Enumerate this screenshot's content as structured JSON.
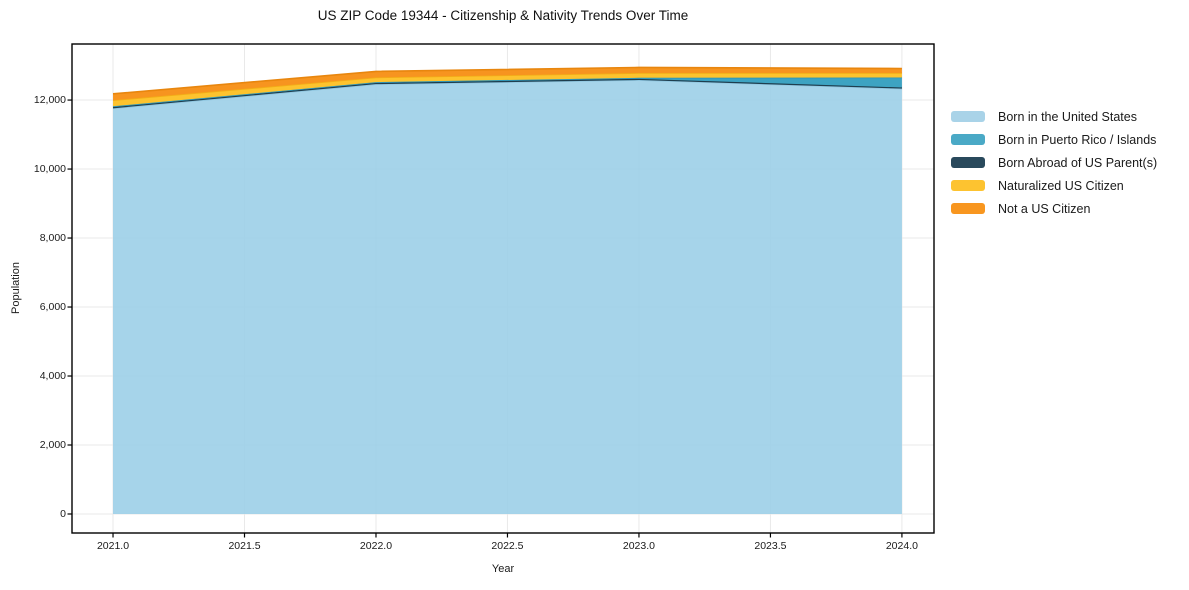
{
  "chart": {
    "title": "US ZIP Code 19344 - Citizenship & Nativity Trends Over Time",
    "xlabel": "Year",
    "ylabel": "Population"
  },
  "chart_data": {
    "type": "area",
    "stacked": true,
    "title": "US ZIP Code 19344 - Citizenship & Nativity Trends Over Time",
    "xlabel": "Year",
    "ylabel": "Population",
    "x": [
      2021,
      2022,
      2023,
      2024
    ],
    "series": [
      {
        "name": "Born in the United States",
        "color": "#a9d3e8",
        "fill": "#9ccfe8",
        "line": "#8ec6e0",
        "fill_opacity": 0.9,
        "values": [
          11760,
          12460,
          12580,
          12330
        ]
      },
      {
        "name": "Born in Puerto Rico / Islands",
        "color": "#4aa9c6",
        "fill": "#3da3c2",
        "line": "#2e94b5",
        "fill_opacity": 1,
        "values": [
          25,
          25,
          30,
          290
        ]
      },
      {
        "name": "Born Abroad of US Parent(s)",
        "color": "#29495c",
        "fill": "#26485a",
        "line": "#1d3a4a",
        "fill_opacity": 1,
        "values": [
          35,
          35,
          35,
          35
        ]
      },
      {
        "name": "Naturalized US Citizen",
        "color": "#fdc330",
        "fill": "#fdc32e",
        "line": "#f2ae17",
        "fill_opacity": 1,
        "values": [
          175,
          135,
          140,
          130
        ]
      },
      {
        "name": "Not a US Citizen",
        "color": "#f8961f",
        "fill": "#f7941f",
        "line": "#e8860e",
        "fill_opacity": 1,
        "values": [
          185,
          175,
          160,
          130
        ]
      }
    ],
    "stack_draw_order": [
      0,
      2,
      1,
      3,
      4
    ],
    "totals_by_year": [
      12180,
      12830,
      12945,
      12915
    ],
    "xlim": [
      2020.844,
      2024.122
    ],
    "ylim": [
      -551,
      13625
    ],
    "x_ticks": [
      2021.0,
      2021.5,
      2022.0,
      2022.5,
      2023.0,
      2023.5,
      2024.0
    ],
    "x_tick_labels": [
      "2021.0",
      "2021.5",
      "2022.0",
      "2022.5",
      "2023.0",
      "2023.5",
      "2024.0"
    ],
    "y_ticks": [
      0,
      2000,
      4000,
      6000,
      8000,
      10000,
      12000
    ],
    "y_tick_labels": [
      "0",
      "2,000",
      "4,000",
      "6,000",
      "8,000",
      "10,000",
      "12,000"
    ],
    "grid": true,
    "grid_color": "#e9e9e9",
    "frame_color": "#000000",
    "legend_position": "right-outside"
  }
}
